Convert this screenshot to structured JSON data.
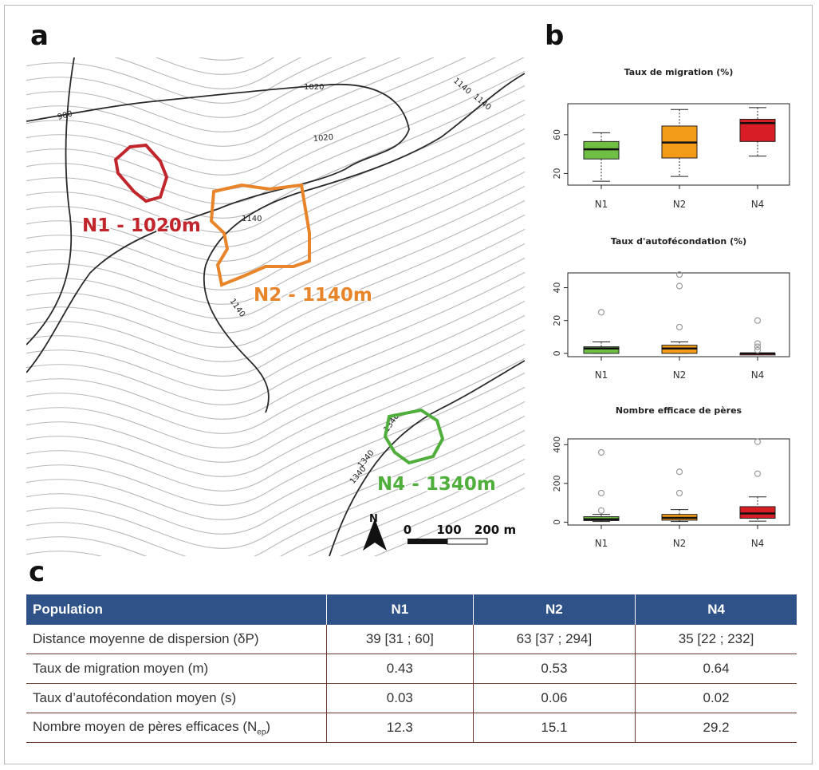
{
  "panel_labels": {
    "a": "a",
    "b": "b",
    "c": "c"
  },
  "map": {
    "contour_labels": [
      "900",
      "1020",
      "1020",
      "1140",
      "1140",
      "1140",
      "1140",
      "1340",
      "1340",
      "1340"
    ],
    "sites": [
      {
        "label": "N1 - 1020m",
        "color": "#c0262b"
      },
      {
        "label": "N2 - 1140m",
        "color": "#e8852a"
      },
      {
        "label": "N4 - 1340m",
        "color": "#4fae3c"
      }
    ],
    "north_label": "N",
    "scale": {
      "ticks": [
        "0",
        "100",
        "200 m"
      ]
    }
  },
  "chart_data": [
    {
      "type": "boxplot",
      "title": "Taux de migration (%)",
      "categories": [
        "N1",
        "N2",
        "N4"
      ],
      "ylim": [
        8,
        92
      ],
      "yticks": [
        "20",
        "60"
      ],
      "ytick_values": [
        20,
        60
      ],
      "colors": [
        "#6fbf44",
        "#f39c1a",
        "#d81d24"
      ],
      "boxes": [
        {
          "min": 12,
          "q1": 35,
          "median": 45,
          "q3": 53,
          "max": 62,
          "outliers": []
        },
        {
          "min": 17,
          "q1": 36,
          "median": 52,
          "q3": 69,
          "max": 86,
          "outliers": []
        },
        {
          "min": 38,
          "q1": 53,
          "median": 72,
          "q3": 76,
          "max": 88,
          "outliers": []
        }
      ]
    },
    {
      "type": "boxplot",
      "title": "Taux d'autofécondation (%)",
      "categories": [
        "N1",
        "N2",
        "N4"
      ],
      "ylim": [
        -2,
        49
      ],
      "yticks": [
        "0",
        "20",
        "40"
      ],
      "ytick_values": [
        0,
        20,
        40
      ],
      "colors": [
        "#6fbf44",
        "#f39c1a",
        "#d81d24"
      ],
      "boxes": [
        {
          "min": 0,
          "q1": 0,
          "median": 3,
          "q3": 4,
          "max": 7,
          "outliers": [
            25
          ]
        },
        {
          "min": 0,
          "q1": 0,
          "median": 3,
          "q3": 5,
          "max": 7,
          "outliers": [
            16,
            41,
            48
          ]
        },
        {
          "min": 0,
          "q1": 0,
          "median": 0,
          "q3": 0,
          "max": 0,
          "outliers": [
            2,
            4,
            6,
            20
          ]
        }
      ]
    },
    {
      "type": "boxplot",
      "title": "Nombre efficace de pères",
      "categories": [
        "N1",
        "N2",
        "N4"
      ],
      "ylim": [
        -15,
        430
      ],
      "yticks": [
        "0",
        "200",
        "400"
      ],
      "ytick_values": [
        0,
        200,
        400
      ],
      "colors": [
        "#6fbf44",
        "#f39c1a",
        "#d81d24"
      ],
      "boxes": [
        {
          "min": 3,
          "q1": 8,
          "median": 15,
          "q3": 28,
          "max": 40,
          "outliers": [
            60,
            150,
            360
          ]
        },
        {
          "min": 3,
          "q1": 10,
          "median": 22,
          "q3": 40,
          "max": 65,
          "outliers": [
            150,
            260
          ]
        },
        {
          "min": 5,
          "q1": 20,
          "median": 45,
          "q3": 80,
          "max": 130,
          "outliers": [
            250,
            415
          ]
        }
      ]
    },
    {
      "type": "table",
      "headers": [
        "Population",
        "N1",
        "N2",
        "N4"
      ],
      "rows": [
        {
          "label": "Distance moyenne de dispersion (δP)",
          "label_sub": "",
          "values": [
            "39 [31 ; 60]",
            "63 [37 ; 294]",
            "35 [22 ; 232]"
          ]
        },
        {
          "label": "Taux de migration moyen (m)",
          "label_sub": "",
          "values": [
            "0.43",
            "0.53",
            "0.64"
          ]
        },
        {
          "label": "Taux d’autofécondation moyen (s)",
          "label_sub": "",
          "values": [
            "0.03",
            "0.06",
            "0.02"
          ]
        },
        {
          "label": "Nombre moyen de pères efficaces (N",
          "label_sub": "ep",
          "label_end": ")",
          "values": [
            "12.3",
            "15.1",
            "29.2"
          ]
        }
      ]
    }
  ]
}
